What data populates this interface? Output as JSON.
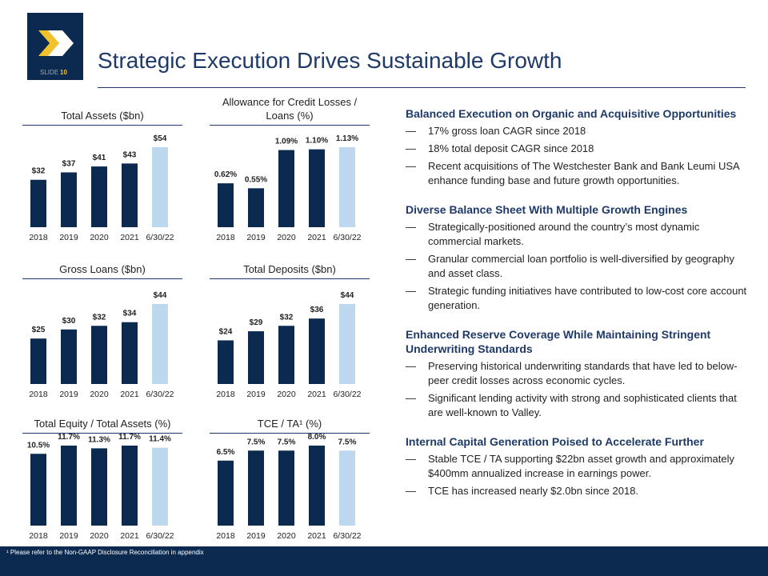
{
  "header": {
    "slide_label": "SLIDE",
    "slide_number": "10",
    "title": "Strategic Execution Drives Sustainable Growth"
  },
  "chart_data": [
    {
      "type": "bar",
      "title": "Total Assets ($bn)",
      "categories": [
        "2018",
        "2019",
        "2020",
        "2021",
        "6/30/22"
      ],
      "values": [
        32,
        37,
        41,
        43,
        54
      ],
      "value_labels": [
        "$32",
        "$37",
        "$41",
        "$43",
        "$54"
      ],
      "colors": [
        "#0c2a4f",
        "#0c2a4f",
        "#0c2a4f",
        "#0c2a4f",
        "#bdd7ee"
      ]
    },
    {
      "type": "bar",
      "title": "Allowance for Credit Losses / Loans (%)",
      "categories": [
        "2018",
        "2019",
        "2020",
        "2021",
        "6/30/22"
      ],
      "values": [
        0.62,
        0.55,
        1.09,
        1.1,
        1.13
      ],
      "value_labels": [
        "0.62%",
        "0.55%",
        "1.09%",
        "1.10%",
        "1.13%"
      ],
      "colors": [
        "#0c2a4f",
        "#0c2a4f",
        "#0c2a4f",
        "#0c2a4f",
        "#bdd7ee"
      ]
    },
    {
      "type": "bar",
      "title": "Gross Loans ($bn)",
      "categories": [
        "2018",
        "2019",
        "2020",
        "2021",
        "6/30/22"
      ],
      "values": [
        25,
        30,
        32,
        34,
        44
      ],
      "value_labels": [
        "$25",
        "$30",
        "$32",
        "$34",
        "$44"
      ],
      "colors": [
        "#0c2a4f",
        "#0c2a4f",
        "#0c2a4f",
        "#0c2a4f",
        "#bdd7ee"
      ]
    },
    {
      "type": "bar",
      "title": "Total Deposits ($bn)",
      "categories": [
        "2018",
        "2019",
        "2020",
        "2021",
        "6/30/22"
      ],
      "values": [
        24,
        29,
        32,
        36,
        44
      ],
      "value_labels": [
        "$24",
        "$29",
        "$32",
        "$36",
        "$44"
      ],
      "colors": [
        "#0c2a4f",
        "#0c2a4f",
        "#0c2a4f",
        "#0c2a4f",
        "#bdd7ee"
      ]
    },
    {
      "type": "bar",
      "title": "Total Equity / Total Assets (%)",
      "categories": [
        "2018",
        "2019",
        "2020",
        "2021",
        "6/30/22"
      ],
      "values": [
        10.5,
        11.7,
        11.3,
        11.7,
        11.4
      ],
      "value_labels": [
        "10.5%",
        "11.7%",
        "11.3%",
        "11.7%",
        "11.4%"
      ],
      "colors": [
        "#0c2a4f",
        "#0c2a4f",
        "#0c2a4f",
        "#0c2a4f",
        "#bdd7ee"
      ]
    },
    {
      "type": "bar",
      "title": "TCE / TA¹ (%)",
      "categories": [
        "2018",
        "2019",
        "2020",
        "2021",
        "6/30/22"
      ],
      "values": [
        6.5,
        7.5,
        7.5,
        8.0,
        7.5
      ],
      "value_labels": [
        "6.5%",
        "7.5%",
        "7.5%",
        "8.0%",
        "7.5%"
      ],
      "colors": [
        "#0c2a4f",
        "#0c2a4f",
        "#0c2a4f",
        "#0c2a4f",
        "#bdd7ee"
      ]
    }
  ],
  "sections": [
    {
      "heading": "Balanced Execution on Organic and Acquisitive Opportunities",
      "bullets": [
        "17% gross loan CAGR since 2018",
        "18% total deposit CAGR since 2018",
        "Recent acquisitions of The Westchester Bank and Bank Leumi USA enhance funding base and future growth opportunities."
      ]
    },
    {
      "heading": "Diverse Balance Sheet With Multiple Growth Engines",
      "bullets": [
        "Strategically-positioned around the country’s most dynamic commercial markets.",
        "Granular commercial loan portfolio is well-diversified by geography and asset class.",
        "Strategic funding initiatives have contributed to low-cost core account generation."
      ]
    },
    {
      "heading": "Enhanced Reserve Coverage While Maintaining Stringent Underwriting Standards",
      "bullets": [
        "Preserving historical underwriting standards that have led to below-peer credit losses across economic cycles.",
        "Significant lending activity with strong and sophisticated clients that are well-known to Valley."
      ]
    },
    {
      "heading": "Internal Capital Generation Poised to Accelerate Further",
      "bullets": [
        "Stable TCE / TA supporting $22bn asset growth and approximately $400mm annualized increase in earnings power.",
        "TCE has increased nearly $2.0bn since 2018."
      ]
    }
  ],
  "footer": "¹ Please refer to the Non-GAAP Disclosure Reconciliation in appendix"
}
